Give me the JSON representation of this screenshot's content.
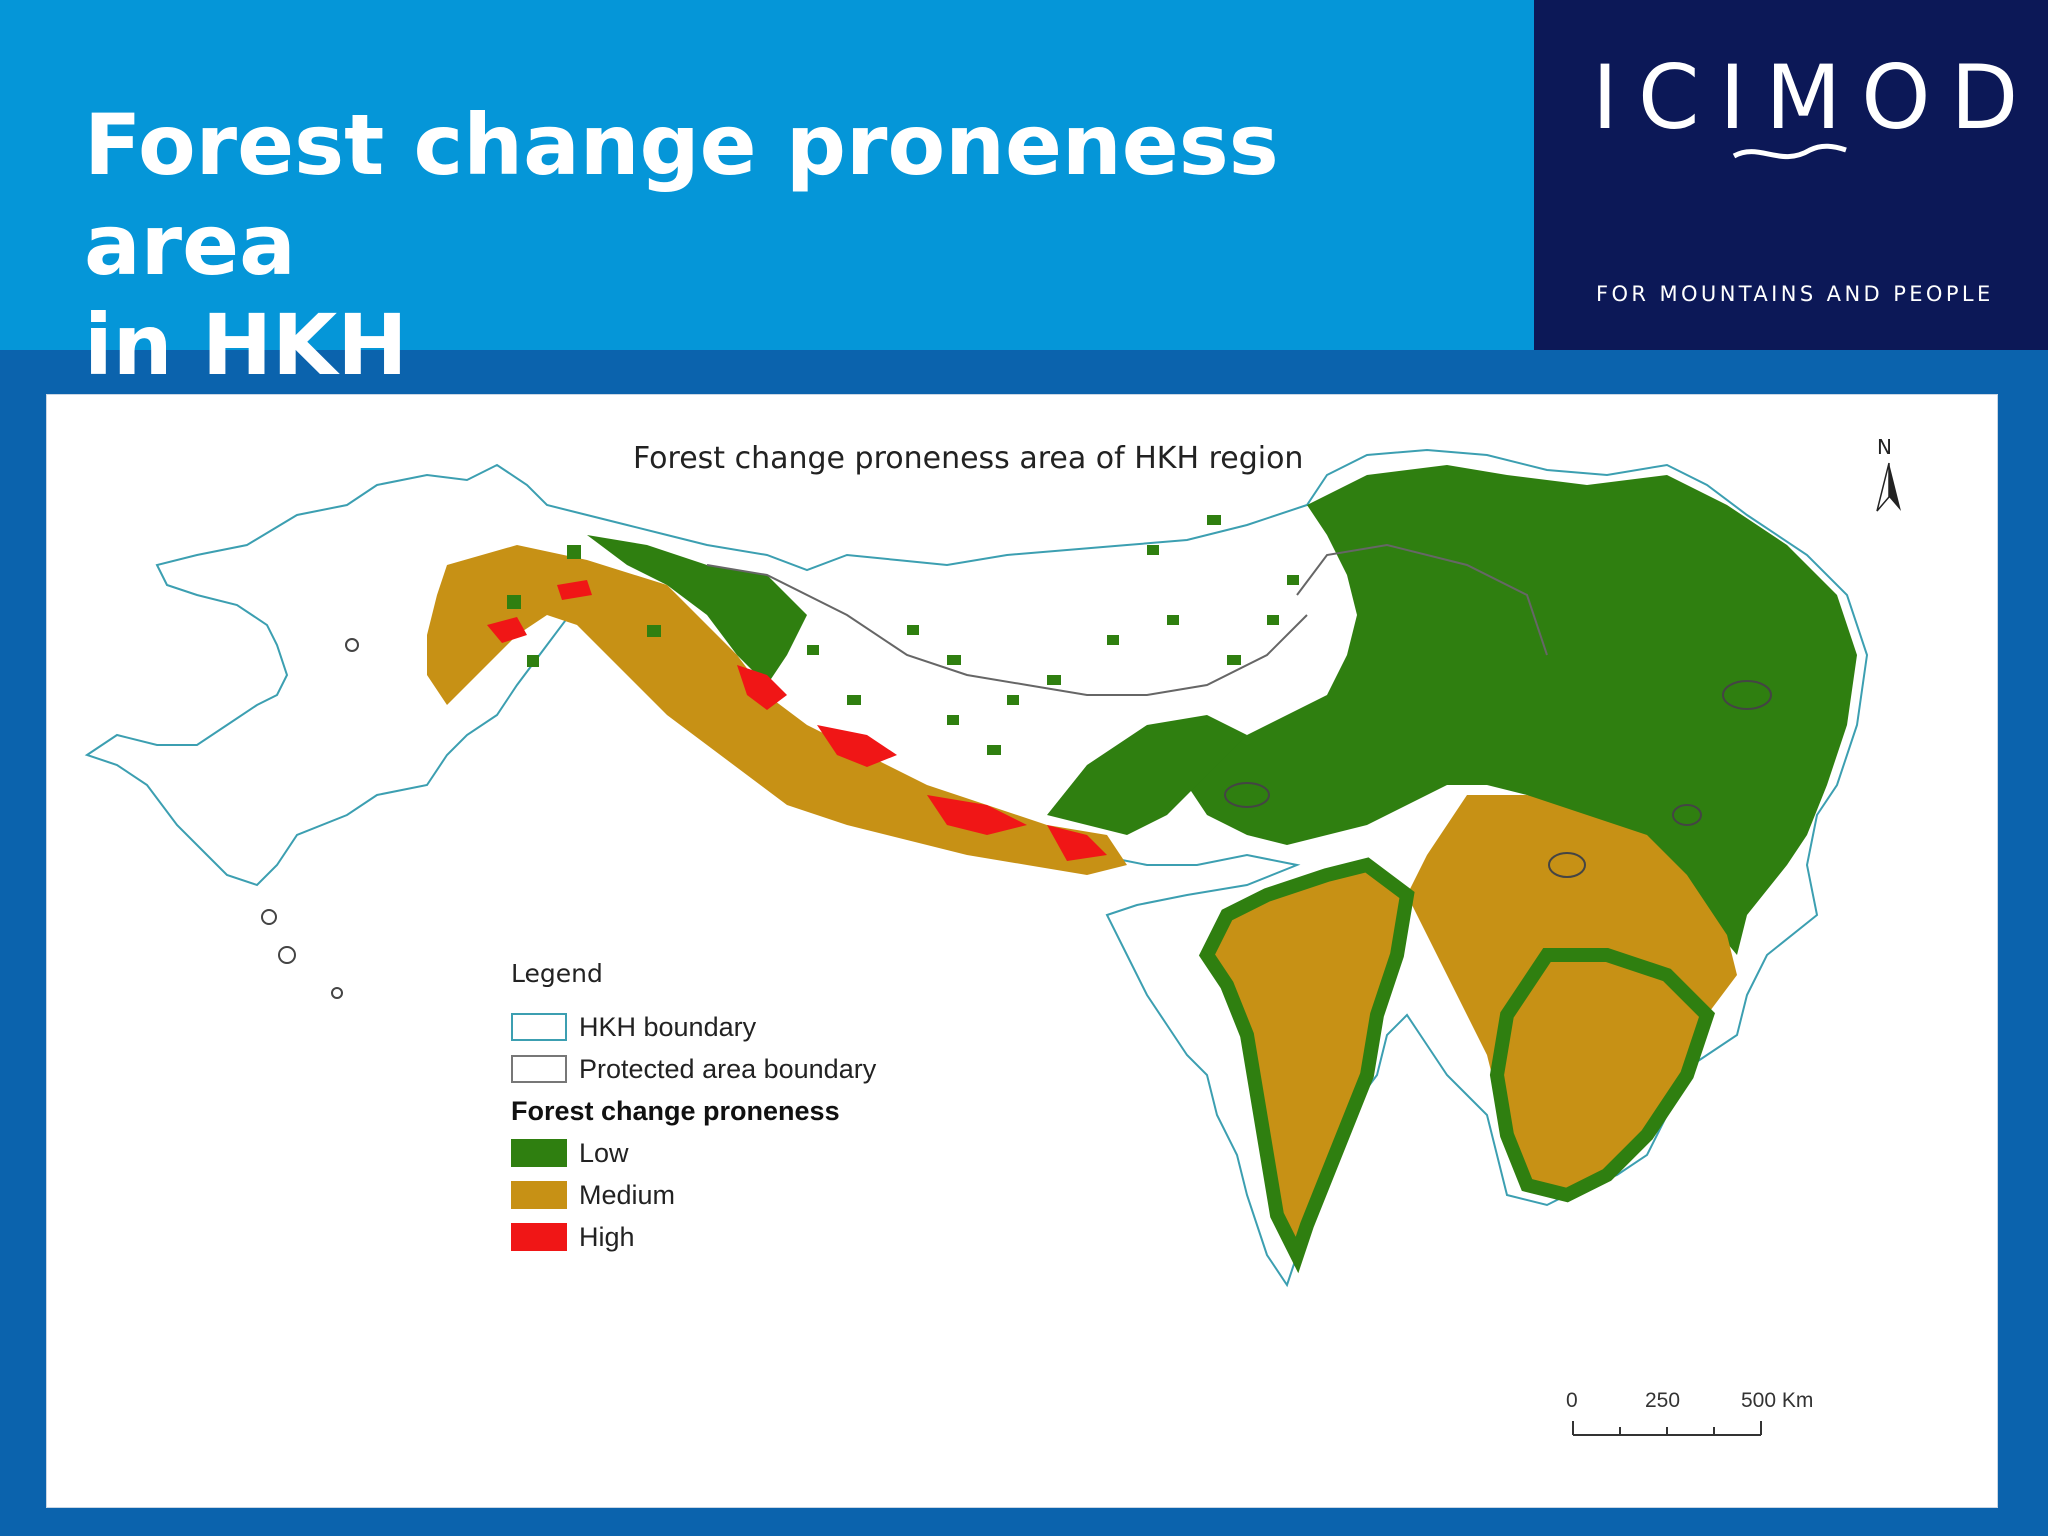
{
  "slide": {
    "title_line1": "Forest change proneness area",
    "title_line2": "in HKH"
  },
  "logo": {
    "text": "ICIMOD",
    "tagline": "FOR MOUNTAINS AND PEOPLE"
  },
  "map": {
    "title": "Forest change proneness area of  HKH region",
    "north_label": "N",
    "legend": {
      "title": "Legend",
      "boundaries": [
        {
          "label": "HKH boundary",
          "type": "hkh"
        },
        {
          "label": "Protected area boundary",
          "type": "protected"
        }
      ],
      "proneness_title": "Forest change proneness",
      "classes": [
        {
          "label": "Low",
          "color": "#2f7f10"
        },
        {
          "label": "Medium",
          "color": "#c79115"
        },
        {
          "label": "High",
          "color": "#f01616"
        }
      ]
    },
    "scale": {
      "labels": [
        "0",
        "250",
        "500 Km"
      ]
    },
    "colors": {
      "hkh_boundary": "#3c9fb1",
      "protected_boundary": "#555555",
      "low": "#2f7f10",
      "medium": "#c79115",
      "high": "#f01616"
    }
  }
}
